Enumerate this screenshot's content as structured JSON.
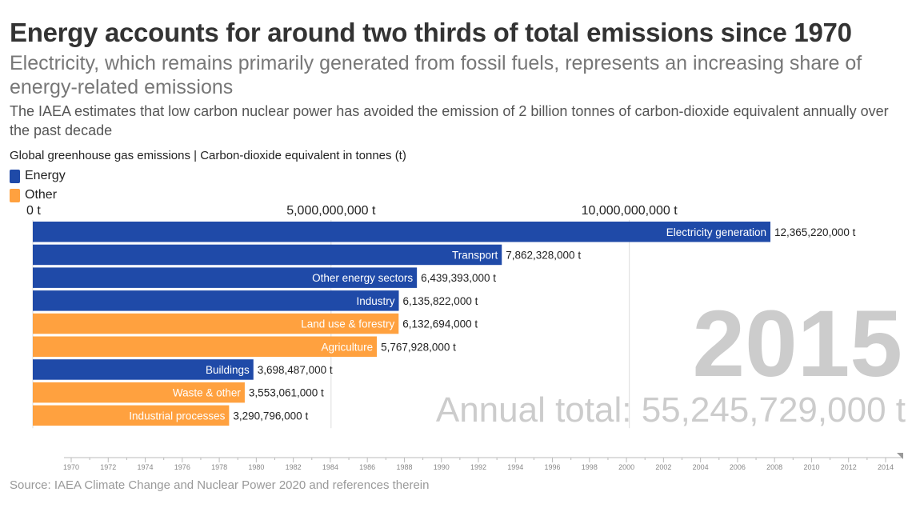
{
  "title": "Energy accounts for around two thirds of total emissions since 1970",
  "subtitle": "Electricity, which remains primarily generated from fossil fuels, represents an increasing share of energy-related emissions",
  "note": "The IAEA estimates that low carbon nuclear power has avoided the emission of 2 billion tonnes of carbon-dioxide equivalent annually over the past decade",
  "measure_label": "Global greenhouse gas emissions | Carbon-dioxide equivalent in tonnes (t)",
  "legend": [
    {
      "label": "Energy",
      "color": "#1f4aa8"
    },
    {
      "label": "Other",
      "color": "#ffa13f"
    }
  ],
  "source": "Source: IAEA Climate Change and Nuclear Power 2020 and references therein",
  "chart_data": {
    "type": "bar",
    "orientation": "horizontal",
    "unit": "t",
    "year": "2015",
    "total_label": "Annual total: 55,245,729,000 t",
    "xlim": [
      0,
      12365220000
    ],
    "x_ticks": [
      {
        "value": 0,
        "label": "0 t"
      },
      {
        "value": 5000000000,
        "label": "5,000,000,000 t"
      },
      {
        "value": 10000000000,
        "label": "10,000,000,000 t"
      }
    ],
    "bars": [
      {
        "category": "Electricity generation",
        "value": 12365220000,
        "label": "12,365,220,000 t",
        "group": "Energy"
      },
      {
        "category": "Transport",
        "value": 7862328000,
        "label": "7,862,328,000 t",
        "group": "Energy"
      },
      {
        "category": "Other energy sectors",
        "value": 6439393000,
        "label": "6,439,393,000 t",
        "group": "Energy"
      },
      {
        "category": "Industry",
        "value": 6135822000,
        "label": "6,135,822,000 t",
        "group": "Energy"
      },
      {
        "category": "Land use & forestry",
        "value": 6132694000,
        "label": "6,132,694,000 t",
        "group": "Other"
      },
      {
        "category": "Agriculture",
        "value": 5767928000,
        "label": "5,767,928,000 t",
        "group": "Other"
      },
      {
        "category": "Buildings",
        "value": 3698487000,
        "label": "3,698,487,000 t",
        "group": "Energy"
      },
      {
        "category": "Waste & other",
        "value": 3553061000,
        "label": "3,553,061,000 t",
        "group": "Other"
      },
      {
        "category": "Industrial processes",
        "value": 3290796000,
        "label": "3,290,796,000 t",
        "group": "Other"
      }
    ],
    "timeline": {
      "start": 1970,
      "end": 2015,
      "current": 2015,
      "tick_labels": [
        "1970",
        "1972",
        "1974",
        "1976",
        "1978",
        "1980",
        "1982",
        "1984",
        "1986",
        "1988",
        "1990",
        "1992",
        "1994",
        "1996",
        "1998",
        "2000",
        "2002",
        "2004",
        "2006",
        "2008",
        "2010",
        "2012",
        "2014"
      ]
    }
  }
}
